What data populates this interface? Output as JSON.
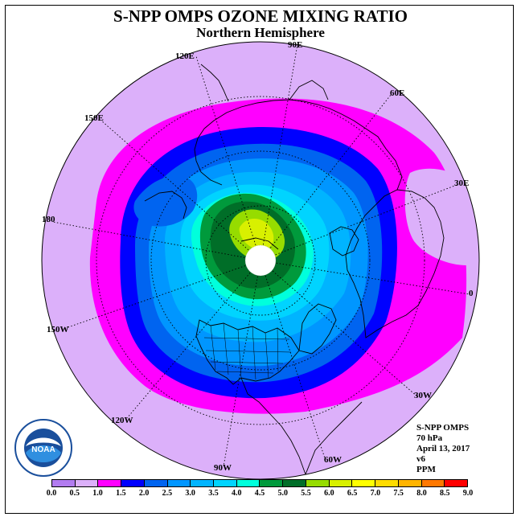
{
  "title": "S-NPP OMPS OZONE MIXING RATIO",
  "subtitle": "Northern Hemisphere",
  "longitude_labels": {
    "lon_90e": "90E",
    "lon_120e": "120E",
    "lon_60e": "60E",
    "lon_150e": "150E",
    "lon_30e": "30E",
    "lon_180": "180",
    "lon_0": "0",
    "lon_150w": "150W",
    "lon_30w": "30W",
    "lon_120w": "120W",
    "lon_60w": "60W",
    "lon_90w": "90W"
  },
  "info": {
    "instrument": "S-NPP OMPS",
    "level": "70 hPa",
    "date": "April 13, 2017",
    "version": "v6",
    "units": "PPM"
  },
  "logo_text": "NOAA",
  "colorbar": {
    "ticks": [
      "0.0",
      "0.5",
      "1.0",
      "1.5",
      "2.0",
      "2.5",
      "3.0",
      "3.5",
      "4.0",
      "4.5",
      "5.0",
      "5.5",
      "6.0",
      "6.5",
      "7.0",
      "7.5",
      "8.0",
      "8.5",
      "9.0"
    ],
    "colors": [
      "#b27cf0",
      "#dcb0fa",
      "#ff00ff",
      "#0000ff",
      "#0064f0",
      "#0096ff",
      "#00b4ff",
      "#00d4ff",
      "#00ffdc",
      "#009a3c",
      "#006e28",
      "#96dc00",
      "#d8f000",
      "#ffff00",
      "#ffdc00",
      "#ffb400",
      "#ff7800",
      "#ff0000",
      "#8c4a38"
    ]
  },
  "map_colors": {
    "land_outline": "#000000",
    "pole_hole": "#ffffff"
  }
}
